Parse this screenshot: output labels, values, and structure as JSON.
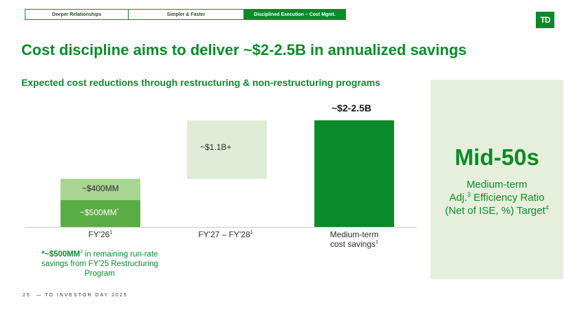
{
  "tabs": [
    {
      "label": "Deeper Relationships",
      "active": false
    },
    {
      "label": "Simpler & Faster",
      "active": false
    },
    {
      "label": "Disciplined Execution – Cost Mgmt.",
      "active": true
    }
  ],
  "logo": {
    "text": "TD"
  },
  "title": "Cost discipline aims to deliver ~$2-2.5B in annualized savings",
  "subtitle": "Expected cost reductions through restructuring & non-restructuring programs",
  "chart_data": {
    "type": "bar",
    "categories": [
      "FY'26",
      "FY'27 – FY'28",
      "Medium-term cost savings"
    ],
    "category_footnotes": [
      "1",
      "1",
      "1"
    ],
    "segments": [
      {
        "category": "FY'26",
        "label": "~$500MM",
        "label_marker": "*",
        "value": 0.5,
        "base": 0,
        "color": "#5aac45"
      },
      {
        "category": "FY'26",
        "label": "~$400MM",
        "value": 0.4,
        "base": 0.5,
        "color": "#a8d592"
      },
      {
        "category": "FY'27 – FY'28",
        "label": "~$1.1B+",
        "value": 1.1,
        "base": 0.9,
        "color": "#e0ecd6"
      },
      {
        "category": "Medium-term cost savings",
        "label": "~$2-2.5B",
        "value": 2.0,
        "base": 0,
        "color": "#0a8a2a"
      }
    ],
    "ylim": [
      0,
      2.1
    ],
    "grid": false,
    "legend": "none"
  },
  "footnote": {
    "bold": "*~$500MM",
    "sup": "2",
    "rest": " in remaining run-rate savings from FY'25 Restructuring Program"
  },
  "panel": {
    "big_value": "Mid-50s",
    "line1": "Medium-term",
    "line2_pre": "Adj.",
    "line2_sup": "3",
    "line2_post": " Efficiency Ratio",
    "line3": "(Net of ISE, %) Target",
    "line3_sup": "4"
  },
  "footer": {
    "page": "25",
    "text": "— TD INVESTOR DAY 2025"
  }
}
